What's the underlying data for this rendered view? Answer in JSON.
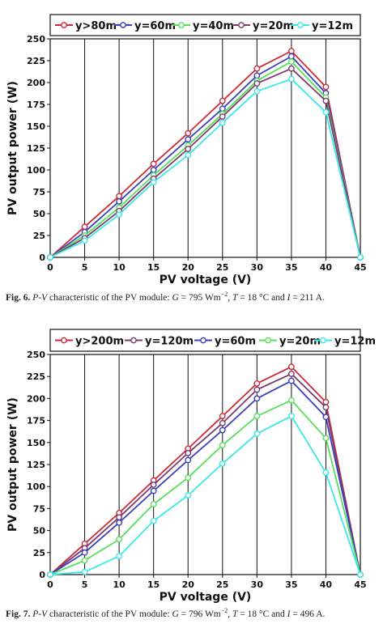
{
  "chart_data": [
    {
      "type": "line",
      "xlabel": "PV voltage (V)",
      "ylabel": "PV output power (W)",
      "xlim": [
        0,
        45
      ],
      "ylim": [
        0,
        250
      ],
      "xticks": [
        0,
        5,
        10,
        15,
        20,
        25,
        30,
        35,
        40,
        45
      ],
      "yticks": [
        0,
        25,
        50,
        75,
        100,
        125,
        150,
        175,
        200,
        225,
        250
      ],
      "grid": "vertical",
      "legend_position": "top",
      "x": [
        0,
        5,
        10,
        15,
        20,
        25,
        30,
        35,
        40,
        45
      ],
      "series": [
        {
          "name": "y>80m",
          "color": "#cc2a36",
          "values": [
            0,
            35,
            70,
            107,
            142,
            179,
            216,
            236,
            195,
            0
          ]
        },
        {
          "name": "y=60m",
          "color": "#3b3fbf",
          "values": [
            0,
            29,
            64,
            100,
            135,
            170,
            208,
            230,
            188,
            0
          ]
        },
        {
          "name": "y=40m",
          "color": "#55e05a",
          "values": [
            0,
            25,
            57,
            94,
            128,
            164,
            202,
            224,
            183,
            0
          ]
        },
        {
          "name": "y=20m",
          "color": "#7d3a6e",
          "values": [
            0,
            22,
            53,
            90,
            124,
            161,
            199,
            216,
            179,
            0
          ]
        },
        {
          "name": "y=12m",
          "color": "#39e8e8",
          "values": [
            0,
            19,
            49,
            86,
            117,
            154,
            190,
            204,
            166,
            0
          ]
        }
      ]
    },
    {
      "type": "line",
      "xlabel": "PV voltage (V)",
      "ylabel": "PV output power (W)",
      "xlim": [
        0,
        45
      ],
      "ylim": [
        0,
        250
      ],
      "xticks": [
        0,
        5,
        10,
        15,
        20,
        25,
        30,
        35,
        40,
        45
      ],
      "yticks": [
        0,
        25,
        50,
        75,
        100,
        125,
        150,
        175,
        200,
        225,
        250
      ],
      "grid": "vertical",
      "legend_position": "top",
      "x": [
        0,
        5,
        10,
        15,
        20,
        25,
        30,
        35,
        40,
        45
      ],
      "series": [
        {
          "name": "y>200m",
          "color": "#cc2a36",
          "values": [
            0,
            35,
            70,
            107,
            143,
            180,
            217,
            236,
            196,
            0
          ]
        },
        {
          "name": "y=120m",
          "color": "#7d3a6e",
          "values": [
            0,
            30,
            65,
            102,
            138,
            172,
            210,
            228,
            190,
            0
          ]
        },
        {
          "name": "y=60m",
          "color": "#3b3fbf",
          "values": [
            0,
            25,
            59,
            95,
            130,
            164,
            200,
            220,
            179,
            0
          ]
        },
        {
          "name": "y=20m",
          "color": "#55e05a",
          "values": [
            0,
            16,
            40,
            80,
            110,
            147,
            180,
            198,
            155,
            0
          ]
        },
        {
          "name": "y=12m",
          "color": "#39e8e8",
          "values": [
            0,
            3,
            21,
            61,
            90,
            126,
            160,
            180,
            116,
            0
          ]
        }
      ]
    }
  ],
  "captions": [
    {
      "label": "Fig. 6.",
      "title": "P-V",
      "text": "characteristic of the PV module:",
      "g_sym": "G",
      "g_val": "= 795 Wm",
      "g_exp": "−2",
      "t_sym": "T",
      "t_val": "= 18 °C and",
      "i_sym": "I",
      "i_val": "= 211 A."
    },
    {
      "label": "Fig. 7.",
      "title": "P-V",
      "text": "characteristic of the PV module:",
      "g_sym": "G",
      "g_val": "= 796 Wm",
      "g_exp": "−2",
      "t_sym": "T",
      "t_val": "= 18 °C and",
      "i_sym": "I",
      "i_val": "= 496 A."
    }
  ]
}
